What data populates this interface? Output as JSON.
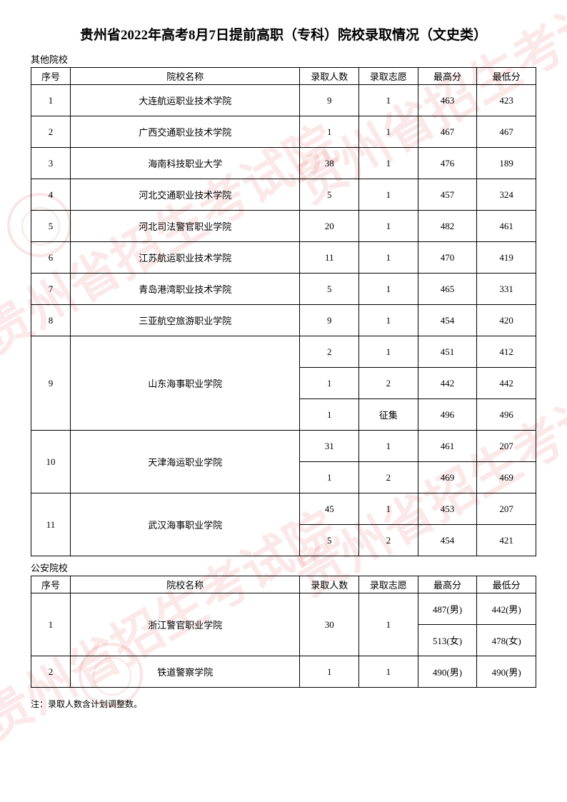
{
  "title": "贵州省2022年高考8月7日提前高职（专科）院校录取情况（文史类）",
  "watermark_text": "贵州省招生考试院",
  "section1": {
    "label": "其他院校",
    "headers": {
      "seq": "序号",
      "name": "院校名称",
      "num": "录取人数",
      "vol": "录取志愿",
      "high": "最高分",
      "low": "最低分"
    },
    "rows": [
      {
        "seq": "1",
        "name": "大连航运职业技术学院",
        "num": "9",
        "vol": "1",
        "high": "463",
        "low": "423",
        "rowspan": 1
      },
      {
        "seq": "2",
        "name": "广西交通职业技术学院",
        "num": "1",
        "vol": "1",
        "high": "467",
        "low": "467",
        "rowspan": 1
      },
      {
        "seq": "3",
        "name": "海南科技职业大学",
        "num": "38",
        "vol": "1",
        "high": "476",
        "low": "189",
        "rowspan": 1
      },
      {
        "seq": "4",
        "name": "河北交通职业技术学院",
        "num": "5",
        "vol": "1",
        "high": "457",
        "low": "324",
        "rowspan": 1
      },
      {
        "seq": "5",
        "name": "河北司法警官职业学院",
        "num": "20",
        "vol": "1",
        "high": "482",
        "low": "461",
        "rowspan": 1
      },
      {
        "seq": "6",
        "name": "江苏航运职业技术学院",
        "num": "11",
        "vol": "1",
        "high": "470",
        "low": "419",
        "rowspan": 1
      },
      {
        "seq": "7",
        "name": "青岛港湾职业技术学院",
        "num": "5",
        "vol": "1",
        "high": "465",
        "low": "331",
        "rowspan": 1
      },
      {
        "seq": "8",
        "name": "三亚航空旅游职业学院",
        "num": "9",
        "vol": "1",
        "high": "454",
        "low": "420",
        "rowspan": 1
      }
    ],
    "merged_rows": [
      {
        "seq": "9",
        "name": "山东海事职业学院",
        "rowspan": 3,
        "cells": [
          {
            "num": "2",
            "vol": "1",
            "high": "451",
            "low": "412"
          },
          {
            "num": "1",
            "vol": "2",
            "high": "442",
            "low": "442"
          },
          {
            "num": "1",
            "vol": "征集",
            "high": "496",
            "low": "496"
          }
        ]
      },
      {
        "seq": "10",
        "name": "天津海运职业学院",
        "rowspan": 2,
        "cells": [
          {
            "num": "31",
            "vol": "1",
            "high": "461",
            "low": "207"
          },
          {
            "num": "1",
            "vol": "2",
            "high": "469",
            "low": "469"
          }
        ]
      },
      {
        "seq": "11",
        "name": "武汉海事职业学院",
        "rowspan": 2,
        "cells": [
          {
            "num": "45",
            "vol": "1",
            "high": "453",
            "low": "207"
          },
          {
            "num": "5",
            "vol": "2",
            "high": "454",
            "low": "421"
          }
        ]
      }
    ]
  },
  "section2": {
    "label": "公安院校",
    "headers": {
      "seq": "序号",
      "name": "院校名称",
      "num": "录取人数",
      "vol": "录取志愿",
      "high": "最高分",
      "low": "最低分"
    },
    "rows": [
      {
        "seq": "1",
        "name": "浙江警官职业学院",
        "num": "30",
        "vol": "1",
        "scores": [
          {
            "high": "487(男)",
            "low": "442(男)"
          },
          {
            "high": "513(女)",
            "low": "478(女)"
          }
        ]
      }
    ],
    "simple_rows": [
      {
        "seq": "2",
        "name": "铁道警察学院",
        "num": "1",
        "vol": "1",
        "high": "490(男)",
        "low": "490(男)"
      }
    ]
  },
  "footnote": "注：录取人数含计划调整数。"
}
